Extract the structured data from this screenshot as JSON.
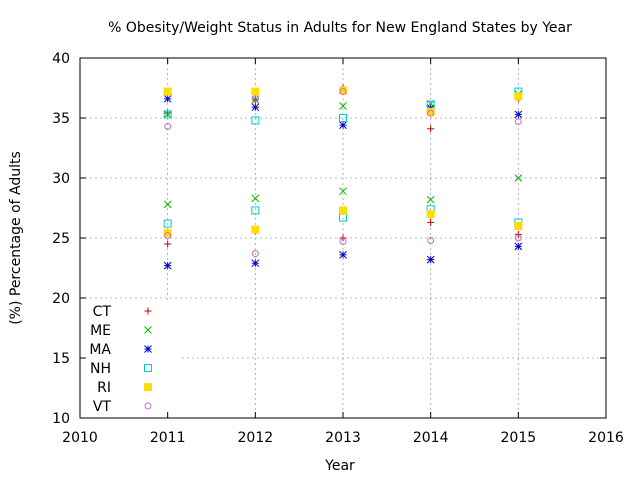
{
  "chart_data": {
    "type": "scatter",
    "title": "% Obesity/Weight Status in Adults for New England States by Year",
    "xlabel": "Year",
    "ylabel": "(%) Percentage of Adults",
    "xlim": [
      2010,
      2016
    ],
    "ylim": [
      10,
      40
    ],
    "xticks": [
      2010,
      2011,
      2012,
      2013,
      2014,
      2015,
      2016
    ],
    "yticks": [
      10,
      15,
      20,
      25,
      30,
      35,
      40
    ],
    "grid": true,
    "legend_position": "bottom-left",
    "x": [
      2011,
      2012,
      2013,
      2014,
      2015
    ],
    "series": [
      {
        "name": "CT",
        "marker": "plus",
        "color": "#cc0000",
        "groups": [
          {
            "x": [
              2011,
              2012,
              2013,
              2014,
              2015
            ],
            "y": [
              24.5,
              25.6,
              25.0,
              26.3,
              25.3
            ]
          },
          {
            "x": [
              2011,
              2012,
              2013,
              2014,
              2015
            ],
            "y": [
              35.4,
              36.5,
              37.5,
              34.1,
              36.6
            ]
          }
        ]
      },
      {
        "name": "ME",
        "marker": "cross",
        "color": "#00bb00",
        "groups": [
          {
            "x": [
              2011,
              2012,
              2013,
              2014,
              2015
            ],
            "y": [
              27.8,
              28.3,
              28.9,
              28.2,
              30.0
            ]
          },
          {
            "x": [
              2011,
              2012,
              2013,
              2014,
              2015
            ],
            "y": [
              35.3,
              36.5,
              36.0,
              36.2,
              37.0
            ]
          }
        ]
      },
      {
        "name": "MA",
        "marker": "asterisk",
        "color": "#0000cc",
        "groups": [
          {
            "x": [
              2011,
              2012,
              2013,
              2014,
              2015
            ],
            "y": [
              22.7,
              22.9,
              23.6,
              23.2,
              24.3
            ]
          },
          {
            "x": [
              2011,
              2012,
              2013,
              2014,
              2015
            ],
            "y": [
              36.6,
              35.9,
              34.4,
              35.8,
              35.3
            ]
          }
        ]
      },
      {
        "name": "NH",
        "marker": "square-open",
        "color": "#00cccc",
        "groups": [
          {
            "x": [
              2011,
              2012,
              2013,
              2014,
              2015
            ],
            "y": [
              26.2,
              27.3,
              26.7,
              27.4,
              26.3
            ]
          },
          {
            "x": [
              2011,
              2012,
              2013,
              2014,
              2015
            ],
            "y": [
              35.3,
              34.8,
              35.0,
              36.1,
              37.2
            ]
          }
        ]
      },
      {
        "name": "RI",
        "marker": "square-filled",
        "color": "#ffdd00",
        "groups": [
          {
            "x": [
              2011,
              2012,
              2013,
              2014,
              2015
            ],
            "y": [
              25.4,
              25.7,
              27.3,
              27.0,
              26.0
            ]
          },
          {
            "x": [
              2011,
              2012,
              2013,
              2014,
              2015
            ],
            "y": [
              37.2,
              37.2,
              37.3,
              35.5,
              36.8
            ]
          }
        ]
      },
      {
        "name": "VT",
        "marker": "circle-open",
        "color": "#cc66cc",
        "groups": [
          {
            "x": [
              2011,
              2012,
              2013,
              2014,
              2015
            ],
            "y": [
              25.2,
              23.7,
              24.7,
              24.8,
              25.0
            ]
          },
          {
            "x": [
              2011,
              2012,
              2013,
              2014,
              2015
            ],
            "y": [
              34.3,
              36.6,
              37.2,
              35.4,
              34.7
            ]
          }
        ]
      }
    ]
  }
}
